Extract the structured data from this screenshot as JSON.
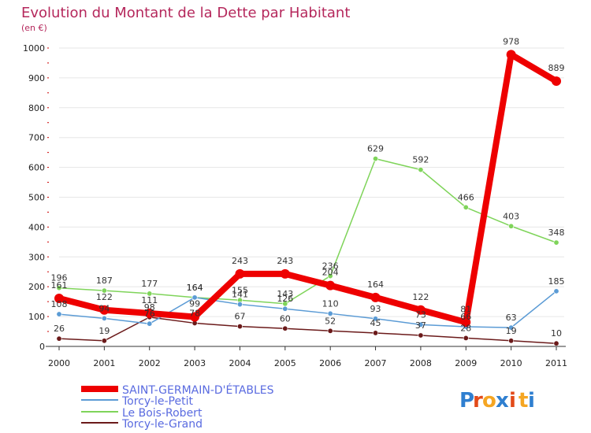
{
  "chart_data": {
    "type": "line",
    "title": "Evolution du Montant de la Dette par Habitant",
    "ylabel": "(en €)",
    "ylim": [
      0,
      1000
    ],
    "yticks": [
      0,
      100,
      200,
      300,
      400,
      500,
      600,
      700,
      800,
      900,
      1000
    ],
    "categories": [
      "2000",
      "2001",
      "2002",
      "2003",
      "2004",
      "2005",
      "2006",
      "2007",
      "2008",
      "2009",
      "2010",
      "2011"
    ],
    "series": [
      {
        "name": "Torcy-le-Grand",
        "color": "#6b1a1a",
        "values": [
          26,
          19,
          98,
          78,
          67,
          60,
          52,
          45,
          37,
          28,
          19,
          10
        ]
      },
      {
        "name": "Le Bois-Robert",
        "color": "#7fd45a",
        "values": [
          196,
          187,
          177,
          164,
          155,
          143,
          236,
          629,
          592,
          466,
          403,
          348
        ]
      },
      {
        "name": "Torcy-le-Petit",
        "color": "#5b9bd5",
        "values": [
          108,
          94,
          76,
          164,
          141,
          126,
          110,
          93,
          73,
          66,
          63,
          185
        ]
      },
      {
        "name": "SAINT-GERMAIN-D'ÉTABLES",
        "color": "#ee0000",
        "values": [
          161,
          122,
          111,
          99,
          243,
          243,
          204,
          164,
          122,
          81,
          978,
          889
        ]
      }
    ],
    "legend": [
      "SAINT-GERMAIN-D'ÉTABLES",
      "Torcy-le-Petit",
      "Le Bois-Robert",
      "Torcy-le-Grand"
    ]
  },
  "logo": {
    "text": "Proxiti"
  }
}
